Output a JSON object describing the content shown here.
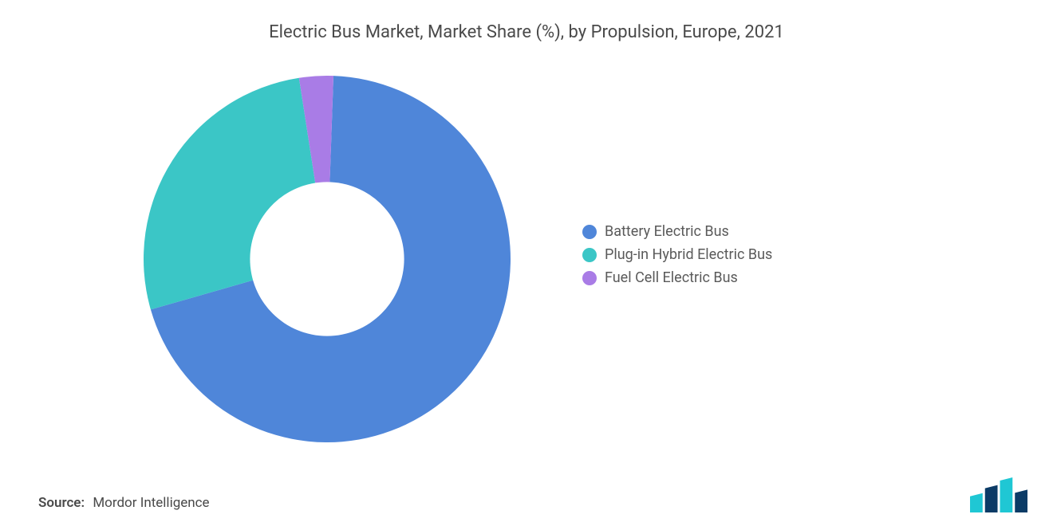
{
  "title": "Electric Bus Market, Market Share (%), by Propulsion, Europe, 2021",
  "chart": {
    "type": "donut",
    "inner_radius_ratio": 0.42,
    "start_angle_deg": 88,
    "background_color": "#ffffff",
    "slices": [
      {
        "label": "Battery Electric Bus",
        "value": 70,
        "color": "#4f86d9"
      },
      {
        "label": "Plug-in Hybrid Electric Bus",
        "value": 27,
        "color": "#3bc6c6"
      },
      {
        "label": "Fuel Cell Electric Bus",
        "value": 3,
        "color": "#a97ce6"
      }
    ]
  },
  "legend": {
    "font_size": 18,
    "text_color": "#5a5a5a",
    "items": [
      {
        "label": "Battery Electric Bus",
        "color": "#4f86d9"
      },
      {
        "label": "Plug-in Hybrid Electric Bus",
        "color": "#3bc6c6"
      },
      {
        "label": "Fuel Cell Electric Bus",
        "color": "#a97ce6"
      }
    ]
  },
  "source": {
    "label": "Source:",
    "value": "Mordor Intelligence"
  },
  "logo": {
    "bar_colors": [
      "#1fc7d4",
      "#0b3b66",
      "#1fc7d4",
      "#0b3b66"
    ],
    "bar_heights": [
      0.55,
      0.78,
      1.0,
      0.65
    ]
  }
}
